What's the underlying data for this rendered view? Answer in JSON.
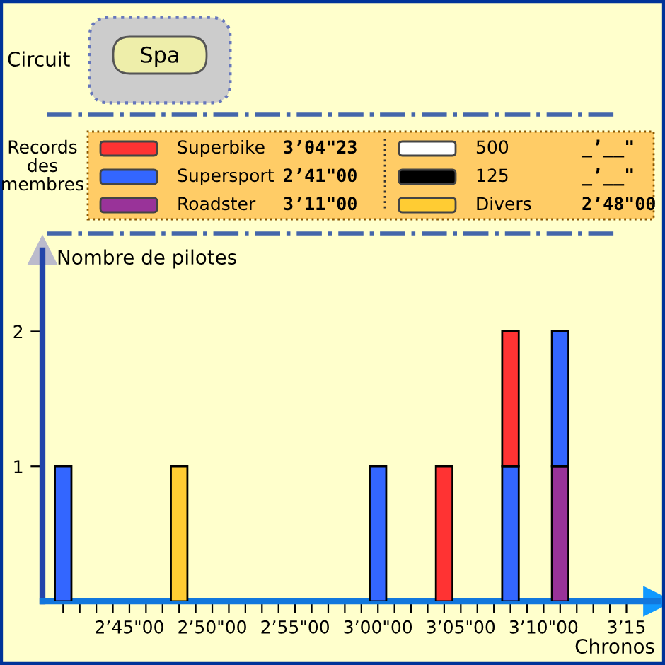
{
  "chart_data": {
    "type": "bar",
    "stacked": true,
    "legend": "top",
    "xlabel": "Chronos",
    "ylabel": "Nombre de pilotes",
    "annotations": [
      "Circuit",
      "Spa",
      "Records des membres",
      "3’11\"00",
      "2’41\"00",
      "3’04\"23",
      "2’48\"00",
      "_’__\"",
      "_’__\""
    ],
    "categories": [
      null,
      null,
      null,
      null,
      "2’45\"00",
      null,
      null,
      null,
      null,
      "2’50\"00",
      null,
      null,
      null,
      null,
      "2’55\"00",
      null,
      null,
      null,
      null,
      "3’00\"00",
      null,
      null,
      null,
      null,
      "3’05\"00",
      null,
      null,
      null,
      null,
      "3’10\"00",
      null,
      null,
      null,
      null,
      "3’15"
    ],
    "series": [
      {
        "name": "Roadster",
        "color": "#993399",
        "values": [
          0,
          0,
          0,
          0,
          0,
          0,
          0,
          0,
          0,
          0,
          0,
          0,
          0,
          0,
          0,
          0,
          0,
          0,
          0,
          0,
          0,
          0,
          0,
          0,
          0,
          0,
          0,
          0,
          0,
          0,
          1,
          0,
          0,
          0,
          0
        ]
      },
      {
        "name": "Supersport",
        "color": "#3366ff",
        "values": [
          1,
          0,
          0,
          0,
          0,
          0,
          0,
          0,
          0,
          0,
          0,
          0,
          0,
          0,
          0,
          0,
          0,
          0,
          0,
          1,
          0,
          0,
          0,
          0,
          0,
          0,
          0,
          1,
          0,
          0,
          1,
          0,
          0,
          0,
          0
        ]
      },
      {
        "name": "Superbike",
        "color": "#ff3333",
        "values": [
          0,
          0,
          0,
          0,
          0,
          0,
          0,
          0,
          0,
          0,
          0,
          0,
          0,
          0,
          0,
          0,
          0,
          0,
          0,
          0,
          0,
          0,
          0,
          1,
          0,
          0,
          0,
          1,
          0,
          0,
          0,
          0,
          0,
          0,
          0
        ]
      },
      {
        "name": "Divers",
        "color": "#ffcc33",
        "values": [
          0,
          0,
          0,
          0,
          0,
          0,
          0,
          1,
          0,
          0,
          0,
          0,
          0,
          0,
          0,
          0,
          0,
          0,
          0,
          0,
          0,
          0,
          0,
          0,
          0,
          0,
          0,
          0,
          0,
          0,
          0,
          0,
          0,
          0,
          0
        ]
      },
      {
        "name": "500",
        "color": "#ffffff",
        "values": [
          0,
          0,
          0,
          0,
          0,
          0,
          0,
          0,
          0,
          0,
          0,
          0,
          0,
          0,
          0,
          0,
          0,
          0,
          0,
          0,
          0,
          0,
          0,
          0,
          0,
          0,
          0,
          0,
          0,
          0,
          0,
          0,
          0,
          0,
          0
        ]
      },
      {
        "name": "125",
        "color": "#000000",
        "values": [
          0,
          0,
          0,
          0,
          0,
          0,
          0,
          0,
          0,
          0,
          0,
          0,
          0,
          0,
          0,
          0,
          0,
          0,
          0,
          0,
          0,
          0,
          0,
          0,
          0,
          0,
          0,
          0,
          0,
          0,
          0,
          0,
          0,
          0,
          0
        ]
      }
    ],
    "ylim": [
      0,
      2.6
    ],
    "yticks": [
      1,
      2
    ],
    "grid": false
  }
}
